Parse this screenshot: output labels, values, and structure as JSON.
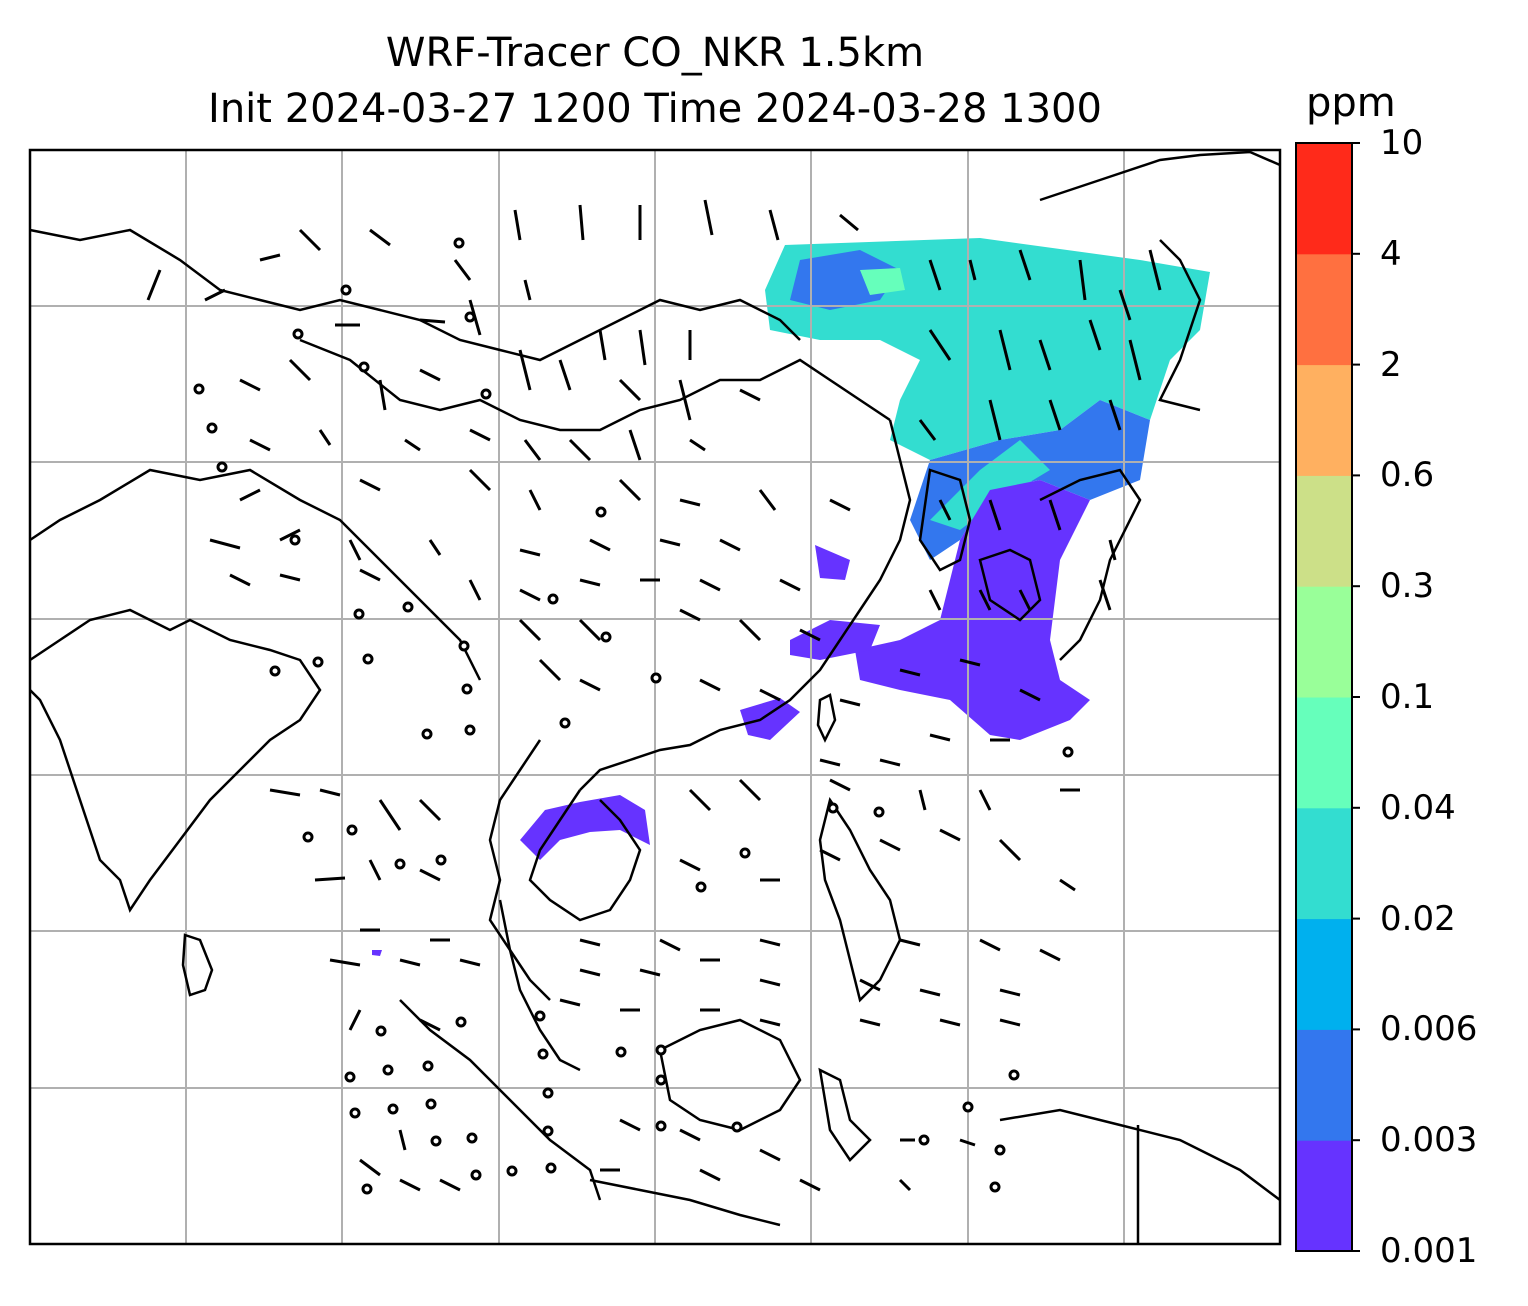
{
  "title": {
    "line1": "WRF-Tracer CO_NKR 1.5km",
    "line2": "Init 2024-03-27 1200 Time 2024-03-28 1300"
  },
  "colorbar": {
    "unit": "ppm",
    "levels": [
      "0.001",
      "0.003",
      "0.006",
      "0.02",
      "0.04",
      "0.1",
      "0.3",
      "0.6",
      "2",
      "4",
      "10"
    ],
    "colors": [
      "#6633ff",
      "#3377ee",
      "#00b0ee",
      "#33ddd0",
      "#66ffbb",
      "#99ff99",
      "#cce088",
      "#ffb060",
      "#ff7040",
      "#ff2a1a"
    ]
  },
  "map": {
    "gridlines": true,
    "plume_colors": {
      "low": "#6633ff",
      "mid": "#3377ee",
      "cyan": "#33ddd0",
      "high": "#66ffbb"
    },
    "coastline_color": "#000000",
    "grid_color": "#b0b0b0"
  }
}
